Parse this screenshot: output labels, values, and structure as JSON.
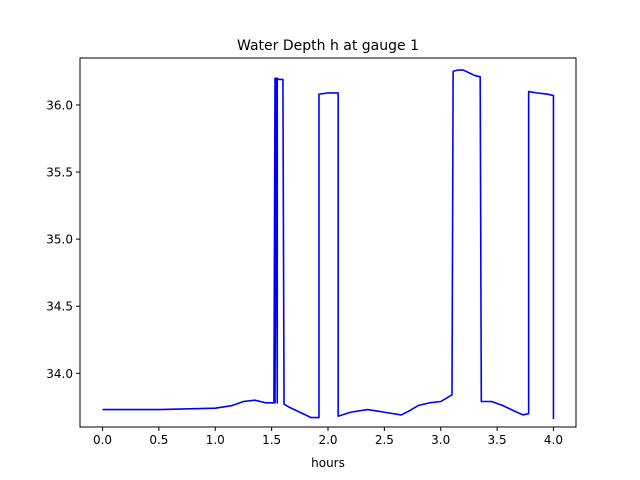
{
  "chart_data": {
    "type": "line",
    "title": "Water Depth h at gauge 1",
    "xlabel": "hours",
    "ylabel": "",
    "xlim": [
      -0.2,
      4.2
    ],
    "ylim": [
      33.6,
      36.35
    ],
    "xticks": [
      0.0,
      0.5,
      1.0,
      1.5,
      2.0,
      2.5,
      3.0,
      3.5,
      4.0
    ],
    "xtick_labels": [
      "0.0",
      "0.5",
      "1.0",
      "1.5",
      "2.0",
      "2.5",
      "3.0",
      "3.5",
      "4.0"
    ],
    "yticks": [
      34.0,
      34.5,
      35.0,
      35.5,
      36.0
    ],
    "ytick_labels": [
      "34.0",
      "34.5",
      "35.0",
      "35.5",
      "36.0"
    ],
    "grid": false,
    "series": [
      {
        "color": "#0000ff",
        "x": [
          0.0,
          0.5,
          1.0,
          1.15,
          1.25,
          1.35,
          1.45,
          1.52,
          1.53,
          1.53,
          1.54,
          1.55,
          1.55,
          1.56,
          1.6,
          1.61,
          1.65,
          1.75,
          1.85,
          1.92,
          1.92,
          2.0,
          2.09,
          2.09,
          2.2,
          2.35,
          2.5,
          2.65,
          2.72,
          2.8,
          2.9,
          3.0,
          3.1,
          3.11,
          3.15,
          3.2,
          3.25,
          3.3,
          3.35,
          3.36,
          3.45,
          3.55,
          3.65,
          3.73,
          3.78,
          3.78,
          3.85,
          3.95,
          4.0,
          4.0
        ],
        "values": [
          33.73,
          33.73,
          33.74,
          33.76,
          33.79,
          33.8,
          33.78,
          33.78,
          36.2,
          33.78,
          36.2,
          33.78,
          36.2,
          36.19,
          36.19,
          33.77,
          33.75,
          33.71,
          33.67,
          33.67,
          36.08,
          36.09,
          36.09,
          33.68,
          33.71,
          33.73,
          33.71,
          33.69,
          33.72,
          33.76,
          33.78,
          33.79,
          33.84,
          36.25,
          36.26,
          36.26,
          36.24,
          36.22,
          36.21,
          33.79,
          33.79,
          33.76,
          33.72,
          33.69,
          33.7,
          36.1,
          36.09,
          36.08,
          36.07,
          33.66
        ]
      }
    ]
  }
}
